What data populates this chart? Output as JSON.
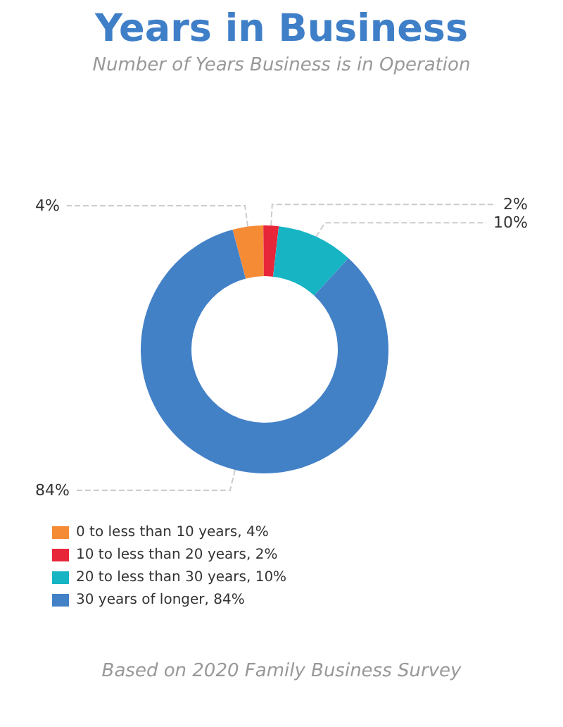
{
  "chart_data": {
    "type": "donut",
    "title": "Years in Business",
    "subtitle": "Number of Years Business is in Operation",
    "categories": [
      "0 to less than 10 years, 4%",
      "10 to less than 20 years, 2%",
      "20 to less than 30 years, 10%",
      "30 years of longer, 84%"
    ],
    "values": [
      4,
      2,
      10,
      84
    ],
    "colors": [
      "#f68b36",
      "#e8263a",
      "#17b4c4",
      "#4381c7"
    ],
    "value_labels": [
      "4%",
      "2%",
      "10%",
      "84%"
    ],
    "legend": "bottom left",
    "annotations": [
      "Based on 2020 Family Business Survey"
    ]
  }
}
